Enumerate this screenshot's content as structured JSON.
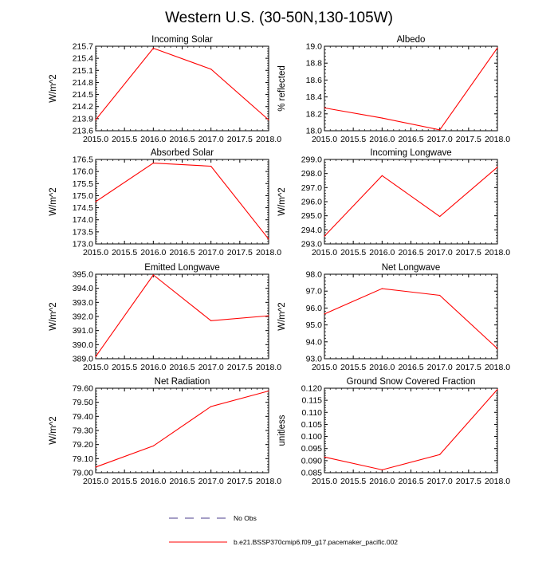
{
  "figure": {
    "title": "Western U.S. (30-50N,130-105W)",
    "series_color": "#ff0000",
    "obs_color": "#4b3c8c"
  },
  "legend": {
    "obs_label": "No Obs",
    "model_label": "b.e21.BSSP370cmip6.f09_g17.pacemaker_pacific.002"
  },
  "chart_data": [
    {
      "type": "line",
      "title": "Incoming Solar",
      "ylabel": "W/m^2",
      "x": [
        2015,
        2016,
        2017,
        2018
      ],
      "xlim": [
        2015,
        2018
      ],
      "xticks": [
        "2015.0",
        "2015.5",
        "2016.0",
        "2016.5",
        "2017.0",
        "2017.5",
        "2018.0"
      ],
      "ylim": [
        213.6,
        215.7
      ],
      "yticks": [
        "213.6",
        "213.9",
        "214.2",
        "214.5",
        "214.8",
        "215.1",
        "215.4",
        "215.7"
      ],
      "series": [
        {
          "name": "b.e21.BSSP370cmip6.f09_g17.pacemaker_pacific.002",
          "values": [
            213.87,
            215.65,
            215.13,
            213.87
          ]
        }
      ]
    },
    {
      "type": "line",
      "title": "Albedo",
      "ylabel": "% reflected",
      "x": [
        2015,
        2016,
        2017,
        2018
      ],
      "xlim": [
        2015,
        2018
      ],
      "xticks": [
        "2015.0",
        "2015.5",
        "2016.0",
        "2016.5",
        "2017.0",
        "2017.5",
        "2018.0"
      ],
      "ylim": [
        18.0,
        19.0
      ],
      "yticks": [
        "18.0",
        "18.2",
        "18.4",
        "18.6",
        "18.8",
        "19.0"
      ],
      "series": [
        {
          "name": "b.e21.BSSP370cmip6.f09_g17.pacemaker_pacific.002",
          "values": [
            18.27,
            18.15,
            18.01,
            18.98
          ]
        }
      ]
    },
    {
      "type": "line",
      "title": "Absorbed Solar",
      "ylabel": "W/m^2",
      "x": [
        2015,
        2016,
        2017,
        2018
      ],
      "xlim": [
        2015,
        2018
      ],
      "xticks": [
        "2015.0",
        "2015.5",
        "2016.0",
        "2016.5",
        "2017.0",
        "2017.5",
        "2018.0"
      ],
      "ylim": [
        173.0,
        176.5
      ],
      "yticks": [
        "173.0",
        "173.5",
        "174.0",
        "174.5",
        "175.0",
        "175.5",
        "176.0",
        "176.5"
      ],
      "series": [
        {
          "name": "b.e21.BSSP370cmip6.f09_g17.pacemaker_pacific.002",
          "values": [
            174.75,
            176.35,
            176.22,
            173.2
          ]
        }
      ]
    },
    {
      "type": "line",
      "title": "Incoming Longwave",
      "ylabel": "W/m^2",
      "x": [
        2015,
        2016,
        2017,
        2018
      ],
      "xlim": [
        2015,
        2018
      ],
      "xticks": [
        "2015.0",
        "2015.5",
        "2016.0",
        "2016.5",
        "2017.0",
        "2017.5",
        "2018.0"
      ],
      "ylim": [
        293.0,
        299.0
      ],
      "yticks": [
        "293.0",
        "294.0",
        "295.0",
        "296.0",
        "297.0",
        "298.0",
        "299.0"
      ],
      "series": [
        {
          "name": "b.e21.BSSP370cmip6.f09_g17.pacemaker_pacific.002",
          "values": [
            293.55,
            297.85,
            294.95,
            298.45
          ]
        }
      ]
    },
    {
      "type": "line",
      "title": "Emitted Longwave",
      "ylabel": "W/m^2",
      "x": [
        2015,
        2016,
        2017,
        2018
      ],
      "xlim": [
        2015,
        2018
      ],
      "xticks": [
        "2015.0",
        "2015.5",
        "2016.0",
        "2016.5",
        "2017.0",
        "2017.5",
        "2018.0"
      ],
      "ylim": [
        389.0,
        395.0
      ],
      "yticks": [
        "389.0",
        "390.0",
        "391.0",
        "392.0",
        "393.0",
        "394.0",
        "395.0"
      ],
      "series": [
        {
          "name": "b.e21.BSSP370cmip6.f09_g17.pacemaker_pacific.002",
          "values": [
            389.15,
            394.95,
            391.7,
            392.05
          ]
        }
      ]
    },
    {
      "type": "line",
      "title": "Net Longwave",
      "ylabel": "W/m^2",
      "x": [
        2015,
        2016,
        2017,
        2018
      ],
      "xlim": [
        2015,
        2018
      ],
      "xticks": [
        "2015.0",
        "2015.5",
        "2016.0",
        "2016.5",
        "2017.0",
        "2017.5",
        "2018.0"
      ],
      "ylim": [
        93.0,
        98.0
      ],
      "yticks": [
        "93.0",
        "94.0",
        "95.0",
        "96.0",
        "97.0",
        "98.0"
      ],
      "series": [
        {
          "name": "b.e21.BSSP370cmip6.f09_g17.pacemaker_pacific.002",
          "values": [
            95.65,
            97.15,
            96.75,
            93.6
          ]
        }
      ]
    },
    {
      "type": "line",
      "title": "Net Radiation",
      "ylabel": "W/m^2",
      "x": [
        2015,
        2016,
        2017,
        2018
      ],
      "xlim": [
        2015,
        2018
      ],
      "xticks": [
        "2015.0",
        "2015.5",
        "2016.0",
        "2016.5",
        "2017.0",
        "2017.5",
        "2018.0"
      ],
      "ylim": [
        79.0,
        79.6
      ],
      "yticks": [
        "79.00",
        "79.10",
        "79.20",
        "79.30",
        "79.40",
        "79.50",
        "79.60"
      ],
      "series": [
        {
          "name": "b.e21.BSSP370cmip6.f09_g17.pacemaker_pacific.002",
          "values": [
            79.04,
            79.19,
            79.47,
            79.58
          ]
        }
      ]
    },
    {
      "type": "line",
      "title": "Ground Snow Covered Fraction",
      "ylabel": "unitless",
      "x": [
        2015,
        2016,
        2017,
        2018
      ],
      "xlim": [
        2015,
        2018
      ],
      "xticks": [
        "2015.0",
        "2015.5",
        "2016.0",
        "2016.5",
        "2017.0",
        "2017.5",
        "2018.0"
      ],
      "ylim": [
        0.085,
        0.12
      ],
      "yticks": [
        "0.085",
        "0.090",
        "0.095",
        "0.100",
        "0.105",
        "0.110",
        "0.115",
        "0.120"
      ],
      "series": [
        {
          "name": "b.e21.BSSP370cmip6.f09_g17.pacemaker_pacific.002",
          "values": [
            0.0915,
            0.0862,
            0.0925,
            0.1195
          ]
        }
      ]
    }
  ]
}
